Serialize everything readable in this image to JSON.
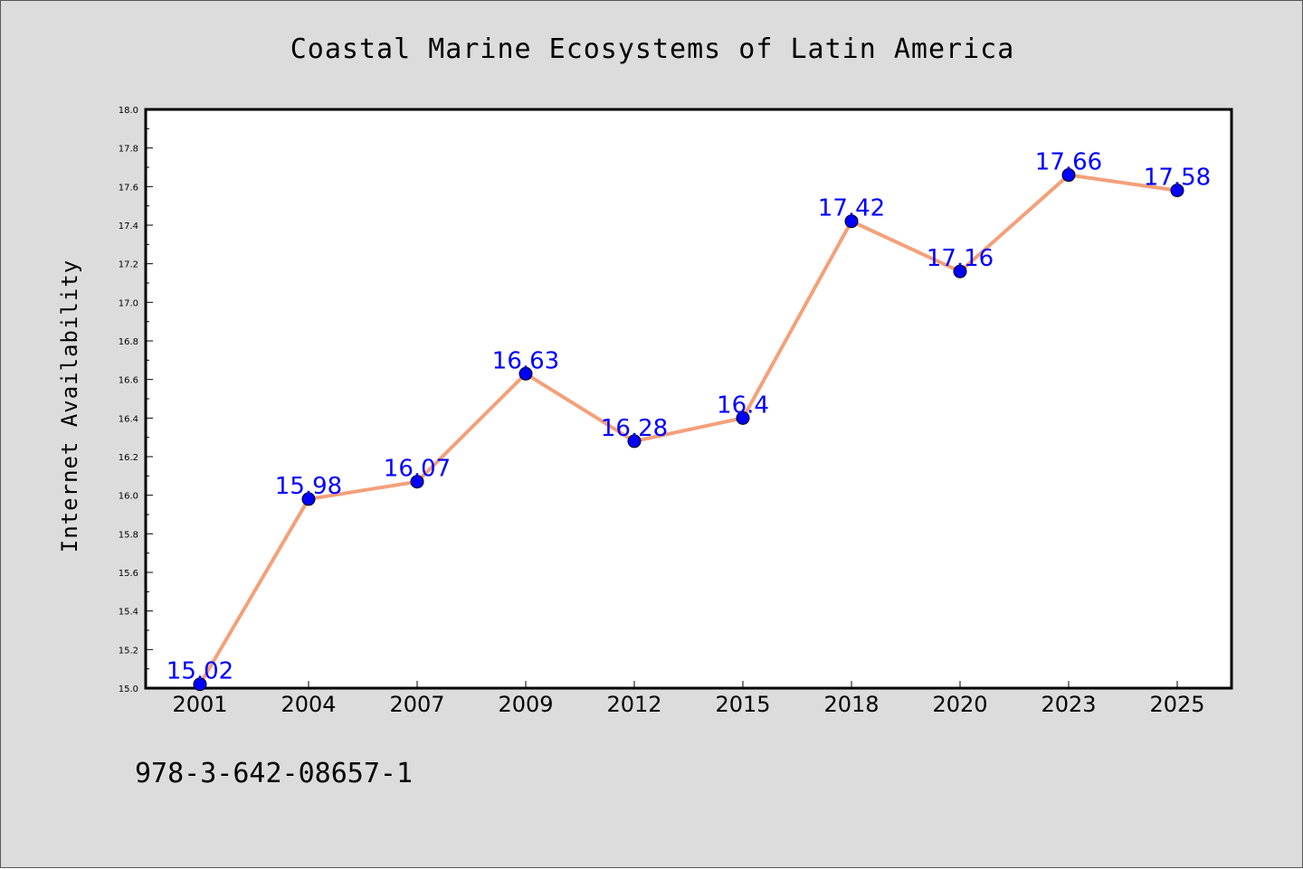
{
  "chart_data": {
    "type": "line",
    "title": "Coastal Marine Ecosystems of Latin America",
    "xlabel": "",
    "ylabel": "Internet Availability",
    "categories": [
      "2001",
      "2004",
      "2007",
      "2009",
      "2012",
      "2015",
      "2018",
      "2020",
      "2023",
      "2025"
    ],
    "series": [
      {
        "values": [
          15.02,
          15.98,
          16.07,
          16.63,
          16.28,
          16.4,
          17.42,
          17.16,
          17.66,
          17.58
        ]
      }
    ],
    "data_labels": [
      "15.02",
      "15.98",
      "16.07",
      "16.63",
      "16.28",
      "16.4",
      "17.42",
      "17.16",
      "17.66",
      "17.58"
    ],
    "ylim": [
      15.0,
      18.0
    ],
    "yticks": [
      "15.0",
      "15.2",
      "15.4",
      "15.6",
      "15.8",
      "16.0",
      "16.2",
      "16.4",
      "16.6",
      "16.8",
      "17.0",
      "17.2",
      "17.4",
      "17.6",
      "17.8",
      "18.0"
    ],
    "grid": false,
    "legend": "none",
    "colors": {
      "line": "#f4a07a",
      "marker": "#0000ff",
      "data_label": "#0000ff",
      "background": "#dcdcdc",
      "plot_area": "#ffffff"
    }
  },
  "footer": {
    "identifier": "978-3-642-08657-1"
  }
}
